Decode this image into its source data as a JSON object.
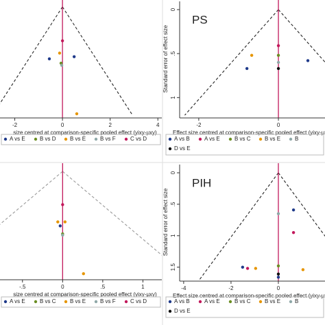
{
  "charts": [
    {
      "chart_data": {
        "type": "scatter",
        "xlabel": "size centred at comparison-specific pooled effect (yixy-μxy)",
        "xlim": [
          -2.62,
          4.08
        ],
        "ylim": [
          0,
          1.5
        ],
        "xticks": [
          -2,
          0,
          2,
          4
        ],
        "series": [
          {
            "name": "A vs E",
            "color": "#1f3a8a",
            "x": [
              -0.55,
              0.49
            ],
            "values": [
              0.72,
              0.69
            ]
          },
          {
            "name": "B vs D",
            "color": "#6b8e23",
            "x": [
              -0.06
            ],
            "values": [
              0.78
            ]
          },
          {
            "name": "B vs E",
            "color": "#e69500",
            "x": [
              -0.12,
              0.6
            ],
            "values": [
              0.64,
              1.48
            ]
          },
          {
            "name": "B vs F",
            "color": "#8fa8a8",
            "x": [
              -0.03
            ],
            "values": [
              0.81
            ]
          },
          {
            "name": "C vs D",
            "color": "#c2185b",
            "x": [
              0
            ],
            "values": [
              0.47
            ]
          }
        ]
      }
    },
    {
      "chart_data": {
        "type": "scatter",
        "title": "PS",
        "xlabel": "Effect size centred at comparison-specific pooled effect (yixy-μxy)",
        "ylabel": "Standard error of effect size",
        "xlim": [
          -2.48,
          1.17
        ],
        "ylim": [
          0,
          1.2
        ],
        "xticks": [
          -2,
          0
        ],
        "yticks": [
          0,
          {
            "value": 0.5,
            "label": ".5"
          },
          1
        ],
        "series": [
          {
            "name": "A vs B",
            "color": "#1f3a8a",
            "x": [
              -0.79,
              0.74
            ],
            "values": [
              0.67,
              0.58
            ]
          },
          {
            "name": "A vs E",
            "color": "#c2185b",
            "x": [
              0
            ],
            "values": [
              0.41
            ]
          },
          {
            "name": "B vs C",
            "color": "#6b8e23",
            "x": [
              0
            ],
            "values": [
              0.52
            ]
          },
          {
            "name": "B vs E",
            "color": "#e69500",
            "x": [
              -0.67
            ],
            "values": [
              0.52
            ]
          },
          {
            "name": "B",
            "color": "#8fa8a8",
            "x": [
              0
            ],
            "values": [
              0.6
            ]
          },
          {
            "name": "D vs E",
            "color": "#111111",
            "x": [
              0
            ],
            "values": [
              0.67
            ]
          }
        ]
      }
    },
    {
      "chart_data": {
        "type": "scatter",
        "xlabel": "size centred at comparison-specific pooled effect (yixy-μxy)",
        "xlim": [
          -0.78,
          1.21
        ],
        "ylim": [
          0,
          0.8
        ],
        "xticks": [
          {
            "value": -0.5,
            "label": "-.5"
          },
          0,
          {
            "value": 0.5,
            "label": ".5"
          },
          1
        ],
        "series": [
          {
            "name": "A vs E",
            "color": "#1f3a8a",
            "x": [
              -0.03
            ],
            "values": [
              0.41
            ]
          },
          {
            "name": "B vs C",
            "color": "#6b8e23",
            "x": [
              0
            ],
            "values": [
              0.47
            ]
          },
          {
            "name": "B vs E",
            "color": "#e69500",
            "x": [
              -0.06,
              0.03,
              0.26
            ],
            "values": [
              0.38,
              0.38,
              0.77
            ]
          },
          {
            "name": "B vs F",
            "color": "#8fa8a8",
            "x": [
              0
            ],
            "values": [
              0.48
            ]
          },
          {
            "name": "C vs D",
            "color": "#c2185b",
            "x": [
              0
            ],
            "values": [
              0.25
            ]
          }
        ]
      }
    },
    {
      "chart_data": {
        "type": "scatter",
        "title": "PIH",
        "xlabel": "Effect size centred at comparison-specific pooled effect (yixy-μxy)",
        "ylabel": "Standard error of effect size",
        "xlim": [
          -4.17,
          1.97
        ],
        "ylim": [
          0,
          1.7
        ],
        "xticks": [
          -4,
          -2,
          0
        ],
        "yticks": [
          0,
          {
            "value": 0.5,
            "label": ".5"
          },
          1,
          1.5
        ],
        "series": [
          {
            "name": "A vs B",
            "color": "#1f3a8a",
            "x": [
              0.64,
              -1.51,
              0
            ],
            "values": [
              0.59,
              1.5,
              1.66
            ]
          },
          {
            "name": "A vs E",
            "color": "#c2185b",
            "x": [
              0.64,
              -1.3
            ],
            "values": [
              0.95,
              1.52
            ]
          },
          {
            "name": "B vs C",
            "color": "#6b8e23",
            "x": [
              0
            ],
            "values": [
              1.48
            ]
          },
          {
            "name": "B vs E",
            "color": "#e69500",
            "x": [
              -0.96,
              1.04
            ],
            "values": [
              1.52,
              1.54
            ]
          },
          {
            "name": "B",
            "color": "#8fa8a8",
            "x": [
              0
            ],
            "values": [
              0.65
            ]
          },
          {
            "name": "D vs E",
            "color": "#111111",
            "x": [
              0
            ],
            "values": [
              1.61
            ]
          }
        ]
      }
    }
  ]
}
